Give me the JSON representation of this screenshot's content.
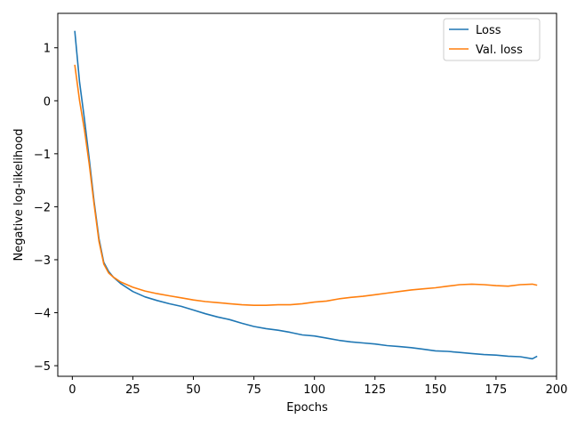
{
  "chart_data": {
    "type": "line",
    "title": "",
    "xlabel": "Epochs",
    "ylabel": "Negative log-likelihood",
    "xlim": [
      -6,
      200
    ],
    "ylim": [
      -5.2,
      1.65
    ],
    "xticks": [
      0,
      25,
      50,
      75,
      100,
      125,
      150,
      175,
      200
    ],
    "yticks": [
      -5,
      -4,
      -3,
      -2,
      -1,
      0,
      1
    ],
    "grid": false,
    "legend_position": "top-right",
    "series": [
      {
        "name": "Loss",
        "color": "#1f77b4",
        "x": [
          1,
          3,
          5,
          7,
          9,
          11,
          13,
          15,
          17,
          20,
          25,
          30,
          35,
          40,
          45,
          50,
          55,
          60,
          65,
          70,
          75,
          80,
          85,
          90,
          95,
          100,
          105,
          110,
          115,
          120,
          125,
          130,
          135,
          140,
          145,
          150,
          155,
          160,
          165,
          170,
          175,
          180,
          185,
          190,
          192
        ],
        "y": [
          1.32,
          0.35,
          -0.35,
          -1.1,
          -1.9,
          -2.6,
          -3.05,
          -3.22,
          -3.33,
          -3.45,
          -3.6,
          -3.7,
          -3.77,
          -3.83,
          -3.88,
          -3.95,
          -4.02,
          -4.08,
          -4.13,
          -4.2,
          -4.26,
          -4.3,
          -4.33,
          -4.37,
          -4.42,
          -4.44,
          -4.48,
          -4.52,
          -4.55,
          -4.57,
          -4.59,
          -4.62,
          -4.64,
          -4.66,
          -4.69,
          -4.72,
          -4.73,
          -4.75,
          -4.77,
          -4.79,
          -4.8,
          -4.82,
          -4.83,
          -4.87,
          -4.82
        ]
      },
      {
        "name": "Val. loss",
        "color": "#ff7f0e",
        "x": [
          1,
          3,
          5,
          7,
          9,
          11,
          13,
          15,
          17,
          20,
          25,
          30,
          35,
          40,
          45,
          50,
          55,
          60,
          65,
          70,
          75,
          80,
          85,
          90,
          95,
          100,
          105,
          110,
          115,
          120,
          125,
          130,
          135,
          140,
          145,
          150,
          155,
          160,
          165,
          170,
          175,
          180,
          185,
          190,
          192
        ],
        "y": [
          0.68,
          0.0,
          -0.55,
          -1.2,
          -1.95,
          -2.65,
          -3.08,
          -3.25,
          -3.33,
          -3.42,
          -3.52,
          -3.59,
          -3.64,
          -3.68,
          -3.72,
          -3.76,
          -3.79,
          -3.81,
          -3.83,
          -3.85,
          -3.86,
          -3.86,
          -3.85,
          -3.85,
          -3.83,
          -3.8,
          -3.78,
          -3.74,
          -3.71,
          -3.69,
          -3.66,
          -3.63,
          -3.6,
          -3.57,
          -3.55,
          -3.53,
          -3.5,
          -3.47,
          -3.46,
          -3.47,
          -3.49,
          -3.5,
          -3.47,
          -3.46,
          -3.48
        ]
      }
    ]
  }
}
